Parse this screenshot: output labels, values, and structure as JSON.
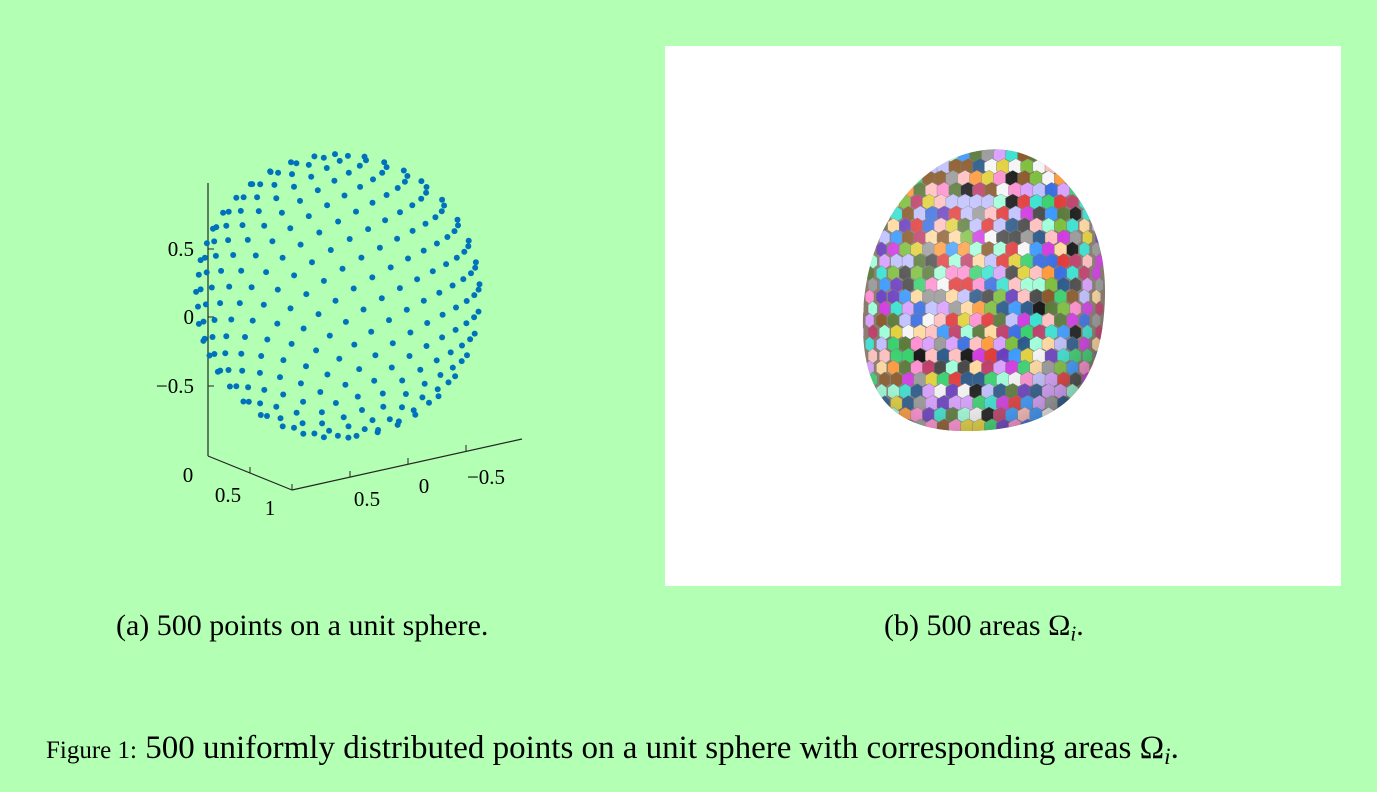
{
  "subfigures": [
    {
      "label": "(a)",
      "caption": "500 points on a unit sphere.",
      "chart_data": {
        "type": "scatter",
        "dimensions": 3,
        "num_points": 500,
        "distribution": "uniform on unit sphere (spiral)",
        "marker_color": "#0072bd",
        "title": "",
        "axes": {
          "z_ticks": [
            "0.5",
            "0",
            "−0.5"
          ],
          "x_ticks": [
            "0",
            "0.5",
            "1"
          ],
          "y_ticks": [
            "0.5",
            "0",
            "−0.5"
          ]
        },
        "grid": false
      }
    },
    {
      "label": "(b)",
      "caption_text": "500 areas ",
      "caption_symbol": "Ω",
      "caption_subscript": "i",
      "caption_end": ".",
      "image": {
        "description_icon": "colored-voronoi-sphere",
        "num_regions": 500
      }
    }
  ],
  "figure": {
    "label": "Figure 1:",
    "text": " 500 uniformly distributed points on a unit sphere with corresponding areas ",
    "symbol": "Ω",
    "subscript": "i",
    "end": "."
  },
  "colors": {
    "page_background": "#b3ffb3",
    "panel_background": "#ffffff",
    "marker": "#0072bd"
  }
}
